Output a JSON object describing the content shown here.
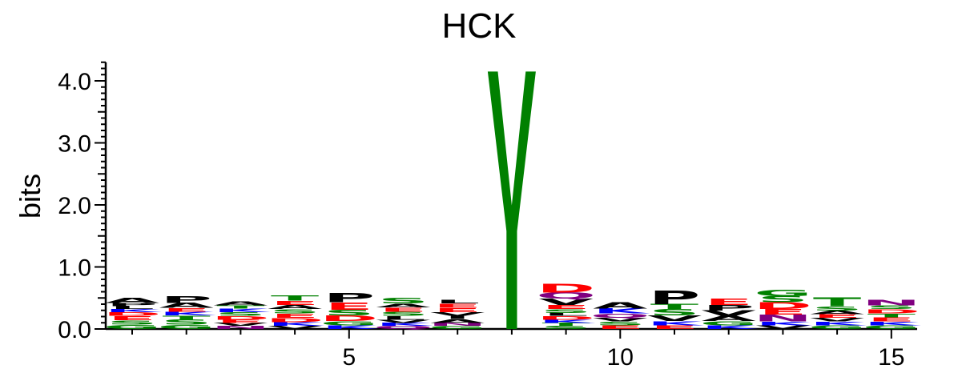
{
  "chart_data": {
    "type": "sequence-logo",
    "title": "HCK",
    "ylabel": "bits",
    "ylim": [
      0,
      4.3
    ],
    "yticks": [
      {
        "value": 0,
        "label": "0.0"
      },
      {
        "value": 1,
        "label": "1.0"
      },
      {
        "value": 2,
        "label": "2.0"
      },
      {
        "value": 3,
        "label": "3.0"
      },
      {
        "value": 4,
        "label": "4.0"
      }
    ],
    "xticks": [
      {
        "value": 5,
        "label": "5"
      },
      {
        "value": 10,
        "label": "10"
      },
      {
        "value": 15,
        "label": "15"
      }
    ],
    "positions": 15,
    "colors": {
      "A": "#000000",
      "P": "#000000",
      "L": "#000000",
      "I": "#000000",
      "V": "#000000",
      "M": "#000000",
      "F": "#000000",
      "W": "#000000",
      "S": "#008000",
      "T": "#008000",
      "Y": "#008000",
      "G": "#008000",
      "C": "#008000",
      "D": "#ff0000",
      "E": "#ff0000",
      "K": "#0000ff",
      "R": "#0000ff",
      "H": "#0000ff",
      "N": "#800080",
      "Q": "#800080"
    },
    "stacks": [
      {
        "position": 1,
        "letters": [
          [
            "G",
            0.07
          ],
          [
            "S",
            0.07
          ],
          [
            "E",
            0.07
          ],
          [
            "D",
            0.06
          ],
          [
            "K",
            0.05
          ],
          [
            "L",
            0.05
          ],
          [
            "P",
            0.05
          ],
          [
            "A",
            0.08
          ]
        ]
      },
      {
        "position": 2,
        "letters": [
          [
            "G",
            0.07
          ],
          [
            "S",
            0.08
          ],
          [
            "T",
            0.07
          ],
          [
            "K",
            0.06
          ],
          [
            "E",
            0.06
          ],
          [
            "A",
            0.08
          ],
          [
            "P",
            0.11
          ]
        ]
      },
      {
        "position": 3,
        "letters": [
          [
            "N",
            0.05
          ],
          [
            "V",
            0.05
          ],
          [
            "E",
            0.05
          ],
          [
            "D",
            0.06
          ],
          [
            "S",
            0.06
          ],
          [
            "K",
            0.06
          ],
          [
            "T",
            0.05
          ],
          [
            "A",
            0.07
          ]
        ]
      },
      {
        "position": 4,
        "letters": [
          [
            "V",
            0.05
          ],
          [
            "K",
            0.06
          ],
          [
            "D",
            0.07
          ],
          [
            "E",
            0.07
          ],
          [
            "S",
            0.07
          ],
          [
            "A",
            0.07
          ],
          [
            "E",
            0.07
          ],
          [
            "T",
            0.08
          ]
        ]
      },
      {
        "position": 5,
        "letters": [
          [
            "K",
            0.06
          ],
          [
            "G",
            0.07
          ],
          [
            "D",
            0.09
          ],
          [
            "S",
            0.09
          ],
          [
            "E",
            0.12
          ],
          [
            "P",
            0.15
          ]
        ]
      },
      {
        "position": 6,
        "letters": [
          [
            "Q",
            0.05
          ],
          [
            "K",
            0.05
          ],
          [
            "V",
            0.05
          ],
          [
            "L",
            0.06
          ],
          [
            "S",
            0.07
          ],
          [
            "E",
            0.07
          ],
          [
            "A",
            0.06
          ],
          [
            "S",
            0.09
          ]
        ]
      },
      {
        "position": 7,
        "letters": [
          [
            "G",
            0.05
          ],
          [
            "N",
            0.05
          ],
          [
            "A",
            0.06
          ],
          [
            "I",
            0.05
          ],
          [
            "V",
            0.06
          ],
          [
            "E",
            0.07
          ],
          [
            "E",
            0.07
          ],
          [
            "L",
            0.06
          ]
        ]
      },
      {
        "position": 8,
        "letters": [
          [
            "Y",
            4.15
          ]
        ]
      },
      {
        "position": 9,
        "letters": [
          [
            "S",
            0.05
          ],
          [
            "T",
            0.05
          ],
          [
            "K",
            0.05
          ],
          [
            "D",
            0.06
          ],
          [
            "L",
            0.05
          ],
          [
            "S",
            0.06
          ],
          [
            "E",
            0.07
          ],
          [
            "V",
            0.1
          ],
          [
            "Q",
            0.1
          ],
          [
            "D",
            0.14
          ]
        ]
      },
      {
        "position": 10,
        "letters": [
          [
            "E",
            0.06
          ],
          [
            "S",
            0.06
          ],
          [
            "V",
            0.06
          ],
          [
            "Q",
            0.07
          ],
          [
            "K",
            0.08
          ],
          [
            "A",
            0.1
          ]
        ]
      },
      {
        "position": 11,
        "letters": [
          [
            "E",
            0.06
          ],
          [
            "K",
            0.07
          ],
          [
            "V",
            0.09
          ],
          [
            "S",
            0.1
          ],
          [
            "T",
            0.08
          ],
          [
            "P",
            0.22
          ]
        ]
      },
      {
        "position": 12,
        "letters": [
          [
            "K",
            0.06
          ],
          [
            "G",
            0.07
          ],
          [
            "A",
            0.08
          ],
          [
            "V",
            0.09
          ],
          [
            "P",
            0.09
          ],
          [
            "E",
            0.1
          ]
        ]
      },
      {
        "position": 13,
        "letters": [
          [
            "V",
            0.06
          ],
          [
            "K",
            0.06
          ],
          [
            "N",
            0.11
          ],
          [
            "E",
            0.09
          ],
          [
            "D",
            0.11
          ],
          [
            "S",
            0.1
          ],
          [
            "G",
            0.1
          ]
        ]
      },
      {
        "position": 14,
        "letters": [
          [
            "G",
            0.06
          ],
          [
            "K",
            0.06
          ],
          [
            "V",
            0.06
          ],
          [
            "E",
            0.06
          ],
          [
            "A",
            0.06
          ],
          [
            "S",
            0.07
          ],
          [
            "T",
            0.14
          ]
        ]
      },
      {
        "position": 15,
        "letters": [
          [
            "G",
            0.06
          ],
          [
            "K",
            0.06
          ],
          [
            "E",
            0.07
          ],
          [
            "T",
            0.06
          ],
          [
            "D",
            0.07
          ],
          [
            "S",
            0.06
          ],
          [
            "N",
            0.09
          ]
        ]
      }
    ]
  }
}
